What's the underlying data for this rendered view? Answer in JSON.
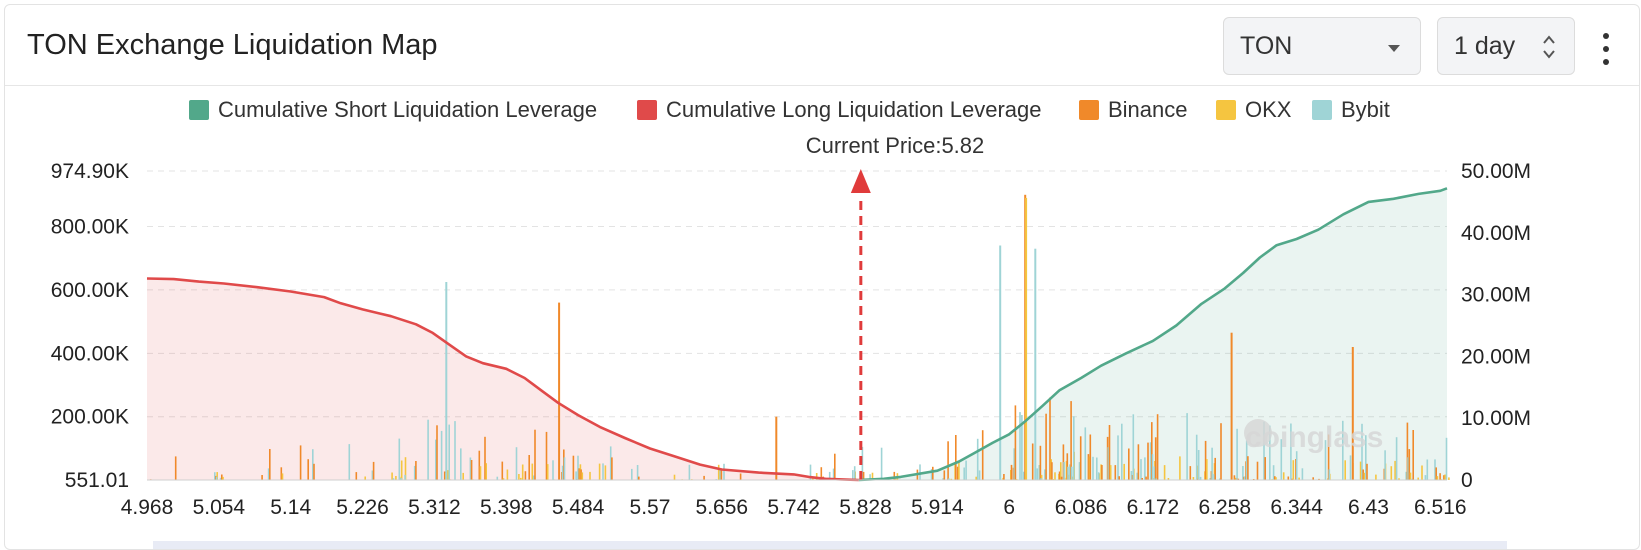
{
  "header": {
    "title": "TON Exchange Liquidation Map",
    "coin_select_value": "TON",
    "range_select_value": "1 day"
  },
  "legend": [
    {
      "label": "Cumulative Short Liquidation Leverage",
      "color": "#52a88a"
    },
    {
      "label": "Cumulative Long Liquidation Leverage",
      "color": "#e04a4a"
    },
    {
      "label": "Binance",
      "color": "#f0892a"
    },
    {
      "label": "OKX",
      "color": "#f5c540"
    },
    {
      "label": "Bybit",
      "color": "#9fd4d6"
    }
  ],
  "watermark": "coinglass",
  "chart_data": {
    "type": "bar",
    "subtitle": "Current Price:5.82",
    "current_price": 5.82,
    "x_range": [
      4.968,
      6.524
    ],
    "x_ticks": [
      "4.968",
      "5.054",
      "5.14",
      "5.226",
      "5.312",
      "5.398",
      "5.484",
      "5.57",
      "5.656",
      "5.742",
      "5.828",
      "5.914",
      "6",
      "6.086",
      "6.172",
      "6.258",
      "6.344",
      "6.43",
      "6.516"
    ],
    "y_left": {
      "min": 551.01,
      "max": 974900,
      "ticks": [
        {
          "value": 974900,
          "label": "974.90K"
        },
        {
          "value": 800000,
          "label": "800.00K"
        },
        {
          "value": 600000,
          "label": "600.00K"
        },
        {
          "value": 400000,
          "label": "400.00K"
        },
        {
          "value": 200000,
          "label": "200.00K"
        },
        {
          "value": 551.01,
          "label": "551.01"
        }
      ]
    },
    "y_right": {
      "min": 0,
      "max": 50000000,
      "ticks": [
        {
          "value": 50000000,
          "label": "50.00M"
        },
        {
          "value": 40000000,
          "label": "40.00M"
        },
        {
          "value": 30000000,
          "label": "30.00M"
        },
        {
          "value": 20000000,
          "label": "20.00M"
        },
        {
          "value": 10000000,
          "label": "10.00M"
        },
        {
          "value": 0,
          "label": "0"
        }
      ]
    },
    "grid": true,
    "long_cumulative": {
      "name": "Cumulative Long Liquidation Leverage",
      "x": [
        4.968,
        5.0,
        5.03,
        5.06,
        5.1,
        5.14,
        5.18,
        5.2,
        5.226,
        5.26,
        5.29,
        5.31,
        5.33,
        5.35,
        5.37,
        5.398,
        5.42,
        5.44,
        5.46,
        5.484,
        5.51,
        5.54,
        5.57,
        5.6,
        5.63,
        5.656,
        5.7,
        5.742,
        5.76,
        5.78,
        5.8,
        5.82
      ],
      "y": [
        32.6,
        32.5,
        32.1,
        31.8,
        31.2,
        30.5,
        29.6,
        28.6,
        27.6,
        26.5,
        25.2,
        23.8,
        21.9,
        20.0,
        18.9,
        18.0,
        16.5,
        14.5,
        12.5,
        10.5,
        8.6,
        6.8,
        5.1,
        3.8,
        2.5,
        1.7,
        1.2,
        0.9,
        0.5,
        0.2,
        0.1,
        0
      ]
    },
    "short_cumulative": {
      "name": "Cumulative Short Liquidation Leverage",
      "x": [
        5.82,
        5.85,
        5.87,
        5.914,
        5.94,
        5.96,
        5.98,
        6.0,
        6.02,
        6.04,
        6.06,
        6.086,
        6.11,
        6.14,
        6.172,
        6.2,
        6.23,
        6.258,
        6.28,
        6.3,
        6.32,
        6.344,
        6.37,
        6.4,
        6.43,
        6.46,
        6.49,
        6.516,
        6.524
      ],
      "y": [
        0,
        0.2,
        0.5,
        1.5,
        3.0,
        4.5,
        6.0,
        7.4,
        9.6,
        12.0,
        14.5,
        16.5,
        18.5,
        20.5,
        22.5,
        25.0,
        28.5,
        31.0,
        33.5,
        36.0,
        38.0,
        39.0,
        40.5,
        43.0,
        45.0,
        45.5,
        46.3,
        46.8,
        47.2
      ]
    },
    "bars": {
      "binance_color": "#f0892a",
      "okx_color": "#f5c540",
      "bybit_color": "#9fd4d6",
      "peaks": [
        {
          "x": 5.325,
          "exchange": "Bybit",
          "value": 625000
        },
        {
          "x": 5.46,
          "exchange": "Binance",
          "value": 560000
        },
        {
          "x": 5.72,
          "exchange": "Binance",
          "value": 200000
        },
        {
          "x": 6.018,
          "exchange": "Binance",
          "value": 900000
        },
        {
          "x": 6.019,
          "exchange": "OKX",
          "value": 890000
        },
        {
          "x": 5.988,
          "exchange": "Bybit",
          "value": 740000
        },
        {
          "x": 6.03,
          "exchange": "Bybit",
          "value": 730000
        },
        {
          "x": 6.265,
          "exchange": "Binance",
          "value": 465000
        },
        {
          "x": 6.41,
          "exchange": "Binance",
          "value": 420000
        }
      ]
    }
  }
}
